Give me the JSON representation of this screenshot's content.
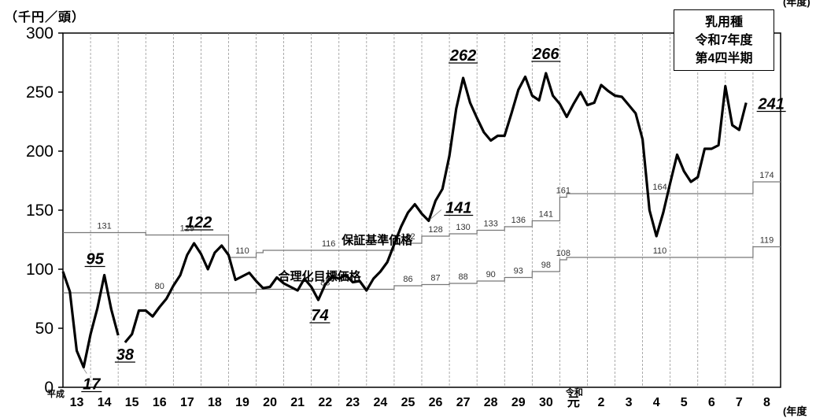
{
  "chart_data": {
    "type": "line",
    "y_unit": "（千円／頭）",
    "x_unit": "(年度",
    "x_unit_top": "(年度)",
    "legend_box": [
      "乳用種",
      "令和7年度",
      "第4四半期"
    ],
    "era_label_heisei": "平成",
    "era_label_reiwa": "令和",
    "ylim": [
      0,
      300
    ],
    "y_ticks": [
      0,
      50,
      100,
      150,
      200,
      250,
      300
    ],
    "x_years": [
      {
        "label": "13",
        "pos": 0
      },
      {
        "label": "14",
        "pos": 1
      },
      {
        "label": "15",
        "pos": 2
      },
      {
        "label": "16",
        "pos": 3
      },
      {
        "label": "17",
        "pos": 4
      },
      {
        "label": "18",
        "pos": 5
      },
      {
        "label": "19",
        "pos": 6
      },
      {
        "label": "20",
        "pos": 7
      },
      {
        "label": "21",
        "pos": 8
      },
      {
        "label": "22",
        "pos": 9
      },
      {
        "label": "23",
        "pos": 10
      },
      {
        "label": "24",
        "pos": 11
      },
      {
        "label": "25",
        "pos": 12
      },
      {
        "label": "26",
        "pos": 13
      },
      {
        "label": "27",
        "pos": 14
      },
      {
        "label": "28",
        "pos": 15
      },
      {
        "label": "29",
        "pos": 16
      },
      {
        "label": "30",
        "pos": 17
      },
      {
        "label": "元",
        "pos": 18
      },
      {
        "label": "2",
        "pos": 19
      },
      {
        "label": "3",
        "pos": 20
      },
      {
        "label": "4",
        "pos": 21
      },
      {
        "label": "5",
        "pos": 22
      },
      {
        "label": "6",
        "pos": 23
      },
      {
        "label": "7",
        "pos": 24
      },
      {
        "label": "8",
        "pos": 25
      }
    ],
    "x_range": [
      -0.5,
      25.5
    ],
    "series": [
      {
        "segment": "a",
        "points": [
          [
            -0.5,
            98
          ],
          [
            -0.25,
            81
          ],
          [
            0.0,
            31
          ],
          [
            0.25,
            17
          ],
          [
            0.5,
            45
          ],
          [
            0.75,
            67
          ],
          [
            1.0,
            95
          ],
          [
            1.25,
            66
          ],
          [
            1.5,
            44
          ]
        ]
      },
      {
        "segment": "b",
        "points": [
          [
            1.75,
            38
          ],
          [
            2.0,
            45
          ],
          [
            2.25,
            65
          ],
          [
            2.5,
            65
          ],
          [
            2.75,
            60
          ],
          [
            3.0,
            68
          ],
          [
            3.25,
            75
          ],
          [
            3.5,
            86
          ],
          [
            3.75,
            95
          ],
          [
            4.0,
            112
          ],
          [
            4.25,
            122
          ],
          [
            4.5,
            113
          ],
          [
            4.75,
            100
          ],
          [
            5.0,
            114
          ],
          [
            5.25,
            120
          ],
          [
            5.5,
            112
          ],
          [
            5.75,
            91
          ],
          [
            6.0,
            94
          ],
          [
            6.25,
            97
          ],
          [
            6.5,
            90
          ],
          [
            6.75,
            84
          ],
          [
            7.0,
            85
          ],
          [
            7.25,
            93
          ],
          [
            7.5,
            88
          ],
          [
            7.75,
            85
          ],
          [
            8.0,
            82
          ],
          [
            8.25,
            92
          ],
          [
            8.5,
            85
          ],
          [
            8.75,
            74
          ],
          [
            9.0,
            87
          ],
          [
            9.25,
            94
          ],
          [
            9.5,
            92
          ],
          [
            9.75,
            95
          ],
          [
            10.0,
            89
          ],
          [
            10.25,
            90
          ],
          [
            10.5,
            82
          ],
          [
            10.75,
            92
          ],
          [
            11.0,
            98
          ],
          [
            11.25,
            106
          ],
          [
            11.5,
            121
          ],
          [
            11.75,
            136
          ],
          [
            12.0,
            148
          ],
          [
            12.25,
            155
          ],
          [
            12.5,
            147
          ],
          [
            12.75,
            141
          ],
          [
            13.0,
            158
          ],
          [
            13.25,
            168
          ],
          [
            13.5,
            196
          ],
          [
            13.75,
            236
          ],
          [
            14.0,
            262
          ],
          [
            14.25,
            241
          ],
          [
            14.5,
            228
          ],
          [
            14.75,
            216
          ],
          [
            15.0,
            209
          ],
          [
            15.25,
            213
          ],
          [
            15.5,
            213
          ],
          [
            15.75,
            232
          ],
          [
            16.0,
            252
          ],
          [
            16.25,
            263
          ],
          [
            16.5,
            247
          ],
          [
            16.75,
            243
          ],
          [
            17.0,
            266
          ],
          [
            17.25,
            247
          ],
          [
            17.5,
            240
          ],
          [
            17.75,
            229
          ],
          [
            18.0,
            240
          ],
          [
            18.25,
            250
          ],
          [
            18.5,
            239
          ],
          [
            18.75,
            241
          ],
          [
            19.0,
            256
          ],
          [
            19.25,
            251
          ],
          [
            19.5,
            247
          ],
          [
            19.75,
            246
          ],
          [
            20.0,
            239
          ],
          [
            20.25,
            232
          ],
          [
            20.5,
            210
          ],
          [
            20.75,
            150
          ],
          [
            21.0,
            128
          ],
          [
            21.25,
            148
          ],
          [
            21.5,
            173
          ],
          [
            21.75,
            197
          ],
          [
            22.0,
            183
          ],
          [
            22.25,
            174
          ],
          [
            22.5,
            178
          ],
          [
            22.75,
            202
          ],
          [
            23.0,
            202
          ],
          [
            23.25,
            205
          ],
          [
            23.5,
            255
          ],
          [
            23.75,
            222
          ],
          [
            24.0,
            218
          ],
          [
            24.25,
            241
          ]
        ]
      }
    ],
    "guaranteed_price": {
      "label": "保証基準価格",
      "steps": [
        {
          "from": -0.5,
          "to": 2.5,
          "value": 131,
          "label": "131"
        },
        {
          "from": 2.5,
          "to": 5.5,
          "value": 129,
          "label": "129"
        },
        {
          "from": 5.5,
          "to": 6.5,
          "value": 110,
          "label": "110"
        },
        {
          "from": 6.5,
          "to": 6.75,
          "value": 114,
          "label": ""
        },
        {
          "from": 6.75,
          "to": 11.5,
          "value": 116,
          "label": "116"
        },
        {
          "from": 11.5,
          "to": 12.5,
          "value": 122,
          "label": "122"
        },
        {
          "from": 12.5,
          "to": 13.5,
          "value": 128,
          "label": "128"
        },
        {
          "from": 13.5,
          "to": 14.5,
          "value": 130,
          "label": "130"
        },
        {
          "from": 14.5,
          "to": 15.5,
          "value": 133,
          "label": "133"
        },
        {
          "from": 15.5,
          "to": 16.5,
          "value": 136,
          "label": "136"
        },
        {
          "from": 16.5,
          "to": 17.5,
          "value": 141,
          "label": "141"
        },
        {
          "from": 17.5,
          "to": 17.75,
          "value": 161,
          "label": "161"
        },
        {
          "from": 17.75,
          "to": 24.5,
          "value": 164,
          "label": "164"
        },
        {
          "from": 24.5,
          "to": 25.5,
          "value": 174,
          "label": "174"
        }
      ]
    },
    "target_price": {
      "label": "合理化目標価格",
      "steps": [
        {
          "from": -0.5,
          "to": 6.5,
          "value": 80,
          "label": "80"
        },
        {
          "from": 6.5,
          "to": 11.5,
          "value": 83,
          "label": "83"
        },
        {
          "from": 11.5,
          "to": 12.5,
          "value": 86,
          "label": "86"
        },
        {
          "from": 12.5,
          "to": 13.5,
          "value": 87,
          "label": "87"
        },
        {
          "from": 13.5,
          "to": 14.5,
          "value": 88,
          "label": "88"
        },
        {
          "from": 14.5,
          "to": 15.5,
          "value": 90,
          "label": "90"
        },
        {
          "from": 15.5,
          "to": 16.5,
          "value": 93,
          "label": "93"
        },
        {
          "from": 16.5,
          "to": 17.5,
          "value": 98,
          "label": "98"
        },
        {
          "from": 17.5,
          "to": 17.75,
          "value": 108,
          "label": "108"
        },
        {
          "from": 17.75,
          "to": 24.5,
          "value": 110,
          "label": "110"
        },
        {
          "from": 24.5,
          "to": 25.5,
          "value": 119,
          "label": "119"
        }
      ]
    },
    "annotations": [
      {
        "text": "95",
        "x": 1.0,
        "y": 95
      },
      {
        "text": "17",
        "x": 0.25,
        "y": 17
      },
      {
        "text": "38",
        "x": 1.75,
        "y": 38
      },
      {
        "text": "122",
        "x": 4.25,
        "y": 122
      },
      {
        "text": "74",
        "x": 8.75,
        "y": 74
      },
      {
        "text": "141",
        "x": 12.75,
        "y": 141
      },
      {
        "text": "262",
        "x": 14.0,
        "y": 262
      },
      {
        "text": "266",
        "x": 17.0,
        "y": 266
      },
      {
        "text": "241",
        "x": 24.25,
        "y": 241
      }
    ]
  }
}
